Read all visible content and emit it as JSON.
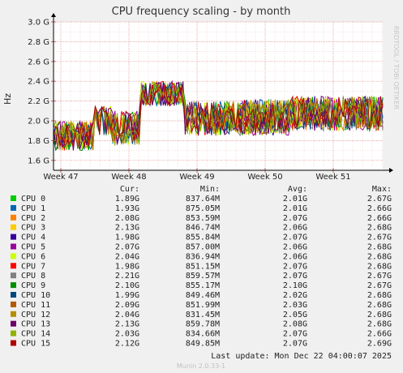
{
  "chart_data": {
    "type": "line",
    "title": "CPU frequency scaling - by month",
    "ylabel": "Hz",
    "ylim": [
      1.5,
      3.0
    ],
    "y_ticks": [
      {
        "v": 1.6,
        "label": "1.6 G"
      },
      {
        "v": 1.8,
        "label": "1.8 G"
      },
      {
        "v": 2.0,
        "label": "2.0 G"
      },
      {
        "v": 2.2,
        "label": "2.2 G"
      },
      {
        "v": 2.4,
        "label": "2.4 G"
      },
      {
        "v": 2.6,
        "label": "2.6 G"
      },
      {
        "v": 2.8,
        "label": "2.8 G"
      },
      {
        "v": 3.0,
        "label": "3.0 G"
      }
    ],
    "xlim": [
      0,
      5
    ],
    "x_ticks": [
      {
        "v": 0.0,
        "label": "Week 47"
      },
      {
        "v": 1.0,
        "label": "Week 48"
      },
      {
        "v": 2.0,
        "label": "Week 49"
      },
      {
        "v": 3.0,
        "label": "Week 50"
      },
      {
        "v": 4.0,
        "label": "Week 51"
      }
    ],
    "grid": true,
    "segments": [
      {
        "x0": -0.15,
        "x1": 0.5,
        "lo": 1.7,
        "hi": 2.0
      },
      {
        "x0": 0.5,
        "x1": 0.75,
        "lo": 1.85,
        "hi": 2.15
      },
      {
        "x0": 0.75,
        "x1": 1.15,
        "lo": 1.75,
        "hi": 2.1
      },
      {
        "x0": 1.15,
        "x1": 1.8,
        "lo": 2.15,
        "hi": 2.4
      },
      {
        "x0": 1.8,
        "x1": 2.65,
        "lo": 1.85,
        "hi": 2.2
      },
      {
        "x0": 2.65,
        "x1": 3.35,
        "lo": 1.85,
        "hi": 2.22
      },
      {
        "x0": 3.35,
        "x1": 4.85,
        "lo": 1.9,
        "hi": 2.25
      }
    ],
    "legend": {
      "headers": {
        "cur": "Cur:",
        "min": "Min:",
        "avg": "Avg:",
        "max": "Max:"
      },
      "rows": [
        {
          "name": "CPU 0",
          "color": "#00cc00",
          "cur": "1.89G",
          "min": "837.64M",
          "avg": "2.01G",
          "max": "2.67G"
        },
        {
          "name": "CPU 1",
          "color": "#0066b3",
          "cur": "1.93G",
          "min": "875.05M",
          "avg": "2.01G",
          "max": "2.66G"
        },
        {
          "name": "CPU 2",
          "color": "#ff8000",
          "cur": "2.08G",
          "min": "853.59M",
          "avg": "2.07G",
          "max": "2.66G"
        },
        {
          "name": "CPU 3",
          "color": "#ffcc00",
          "cur": "2.13G",
          "min": "846.74M",
          "avg": "2.06G",
          "max": "2.68G"
        },
        {
          "name": "CPU 4",
          "color": "#330099",
          "cur": "1.98G",
          "min": "855.84M",
          "avg": "2.07G",
          "max": "2.67G"
        },
        {
          "name": "CPU 5",
          "color": "#990099",
          "cur": "2.07G",
          "min": "857.00M",
          "avg": "2.06G",
          "max": "2.68G"
        },
        {
          "name": "CPU 6",
          "color": "#ccff00",
          "cur": "2.04G",
          "min": "836.94M",
          "avg": "2.06G",
          "max": "2.68G"
        },
        {
          "name": "CPU 7",
          "color": "#ff0000",
          "cur": "1.98G",
          "min": "851.15M",
          "avg": "2.07G",
          "max": "2.68G"
        },
        {
          "name": "CPU 8",
          "color": "#808080",
          "cur": "2.21G",
          "min": "859.57M",
          "avg": "2.07G",
          "max": "2.67G"
        },
        {
          "name": "CPU 9",
          "color": "#008f00",
          "cur": "2.10G",
          "min": "855.17M",
          "avg": "2.10G",
          "max": "2.67G"
        },
        {
          "name": "CPU 10",
          "color": "#00487d",
          "cur": "1.99G",
          "min": "849.46M",
          "avg": "2.02G",
          "max": "2.68G"
        },
        {
          "name": "CPU 11",
          "color": "#b35a00",
          "cur": "2.09G",
          "min": "851.99M",
          "avg": "2.03G",
          "max": "2.68G"
        },
        {
          "name": "CPU 12",
          "color": "#b38f00",
          "cur": "2.04G",
          "min": "831.45M",
          "avg": "2.05G",
          "max": "2.68G"
        },
        {
          "name": "CPU 13",
          "color": "#6b006b",
          "cur": "2.13G",
          "min": "859.78M",
          "avg": "2.08G",
          "max": "2.68G"
        },
        {
          "name": "CPU 14",
          "color": "#8fb300",
          "cur": "2.03G",
          "min": "834.66M",
          "avg": "2.07G",
          "max": "2.66G"
        },
        {
          "name": "CPU 15",
          "color": "#b30000",
          "cur": "2.12G",
          "min": "849.85M",
          "avg": "2.07G",
          "max": "2.69G"
        }
      ]
    },
    "last_update": "Last update:  Mon Dec 22 04:00:07 2025",
    "side_label": "RRDTOOL / TOBI OETIKER",
    "footer": "Munin 2.0.33-1"
  }
}
